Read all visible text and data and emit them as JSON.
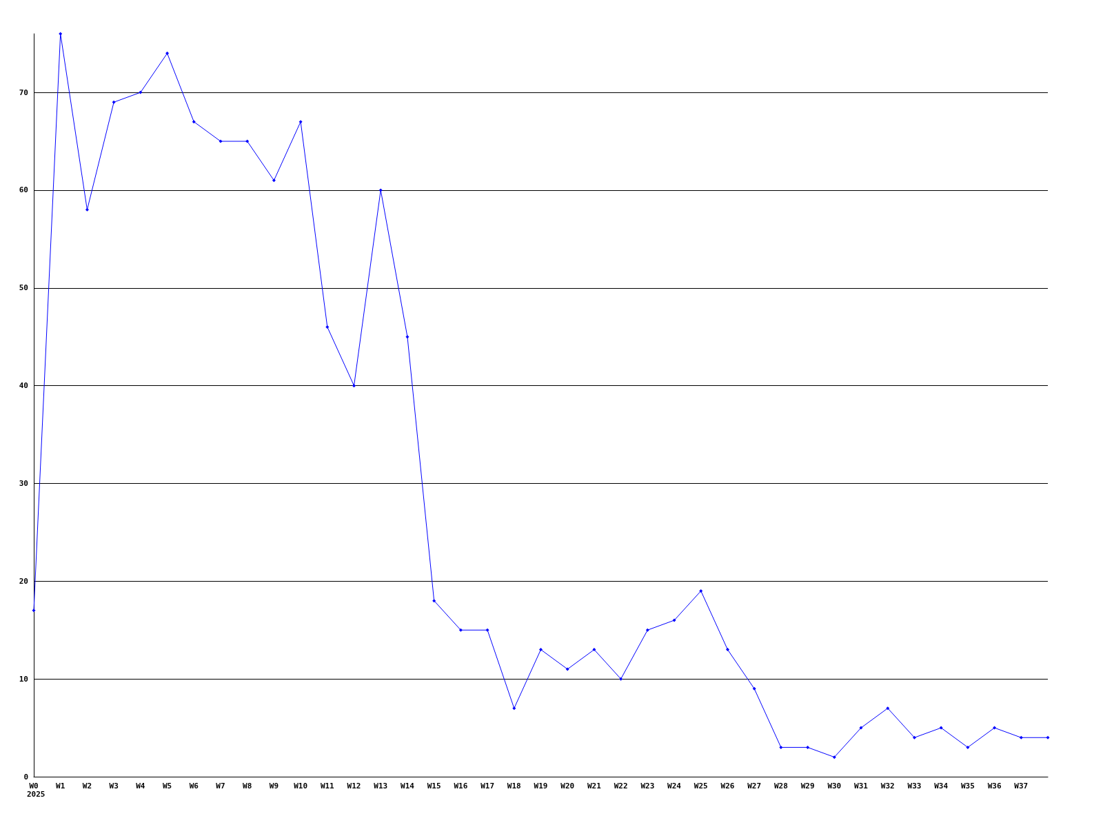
{
  "chart_data": {
    "type": "line",
    "categories": [
      "W0",
      "W1",
      "W2",
      "W3",
      "W4",
      "W5",
      "W6",
      "W7",
      "W8",
      "W9",
      "W10",
      "W11",
      "W12",
      "W13",
      "W14",
      "W15",
      "W16",
      "W17",
      "W18",
      "W19",
      "W20",
      "W21",
      "W22",
      "W23",
      "W24",
      "W25",
      "W26",
      "W27",
      "W28",
      "W29",
      "W30",
      "W31",
      "W32",
      "W33",
      "W34",
      "W35",
      "W36",
      "W37",
      null
    ],
    "series": [
      {
        "color": "#0000ff",
        "values": [
          17,
          76,
          58,
          69,
          70,
          74,
          67,
          65,
          65,
          61,
          67,
          46,
          40,
          60,
          45,
          18,
          15,
          15,
          7,
          13,
          11,
          13,
          10,
          15,
          16,
          19,
          13,
          9,
          3,
          3,
          2,
          5,
          7,
          4,
          5,
          3,
          5,
          4,
          4
        ]
      }
    ],
    "ylim": [
      0,
      76
    ],
    "yticks": [
      0,
      10,
      20,
      30,
      40,
      50,
      60,
      70
    ],
    "grid": "y",
    "marker": "diamond",
    "line_style": "solid",
    "annotations": [
      "2025"
    ]
  }
}
